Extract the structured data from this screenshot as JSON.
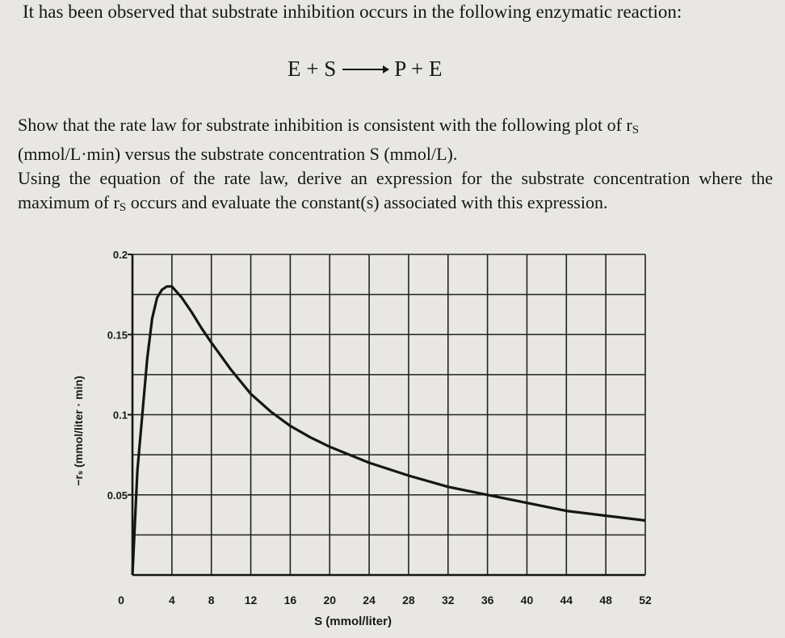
{
  "problem": {
    "intro": "It has been observed that substrate inhibition occurs in the following enzymatic reaction:",
    "reaction": {
      "lhs": "E + S",
      "rhs": "P + E"
    },
    "question": {
      "line1": "Show that the rate law for substrate inhibition is consistent with the following plot of r",
      "line1_sub": "S",
      "line2": "(mmol/L·min) versus the substrate concentration S (mmol/L).",
      "part2_a": "Using the equation of the rate law, derive an expression for the substrate concentration where the maximum of r",
      "part2_sub": "S",
      "part2_b": " occurs and evaluate the constant(s) associated with this expression."
    }
  },
  "chart_data": {
    "type": "line",
    "xlabel": "S (mmol/liter)",
    "ylabel": "−rₛ (mmol/liter · min)",
    "xlim": [
      0,
      52
    ],
    "ylim": [
      0,
      0.2
    ],
    "x_ticks": [
      "0",
      "4",
      "8",
      "12",
      "16",
      "20",
      "24",
      "28",
      "32",
      "36",
      "40",
      "44",
      "48",
      "52"
    ],
    "y_ticks": [
      "0.05",
      "0.1",
      "0.15",
      "0.2"
    ],
    "grid": true,
    "series": [
      {
        "x": [
          0,
          0.5,
          1,
          1.5,
          2,
          2.5,
          3,
          3.5,
          4,
          5,
          6,
          7,
          8,
          10,
          12,
          14,
          16,
          18,
          20,
          24,
          28,
          32,
          36,
          40,
          44,
          48,
          52
        ],
        "y": [
          0,
          0.065,
          0.1,
          0.135,
          0.16,
          0.173,
          0.178,
          0.18,
          0.18,
          0.173,
          0.164,
          0.154,
          0.145,
          0.128,
          0.113,
          0.102,
          0.093,
          0.086,
          0.08,
          0.07,
          0.062,
          0.055,
          0.05,
          0.045,
          0.04,
          0.037,
          0.034
        ]
      }
    ]
  },
  "colors": {
    "paper": "#e9e7e3",
    "ink": "#151515"
  }
}
